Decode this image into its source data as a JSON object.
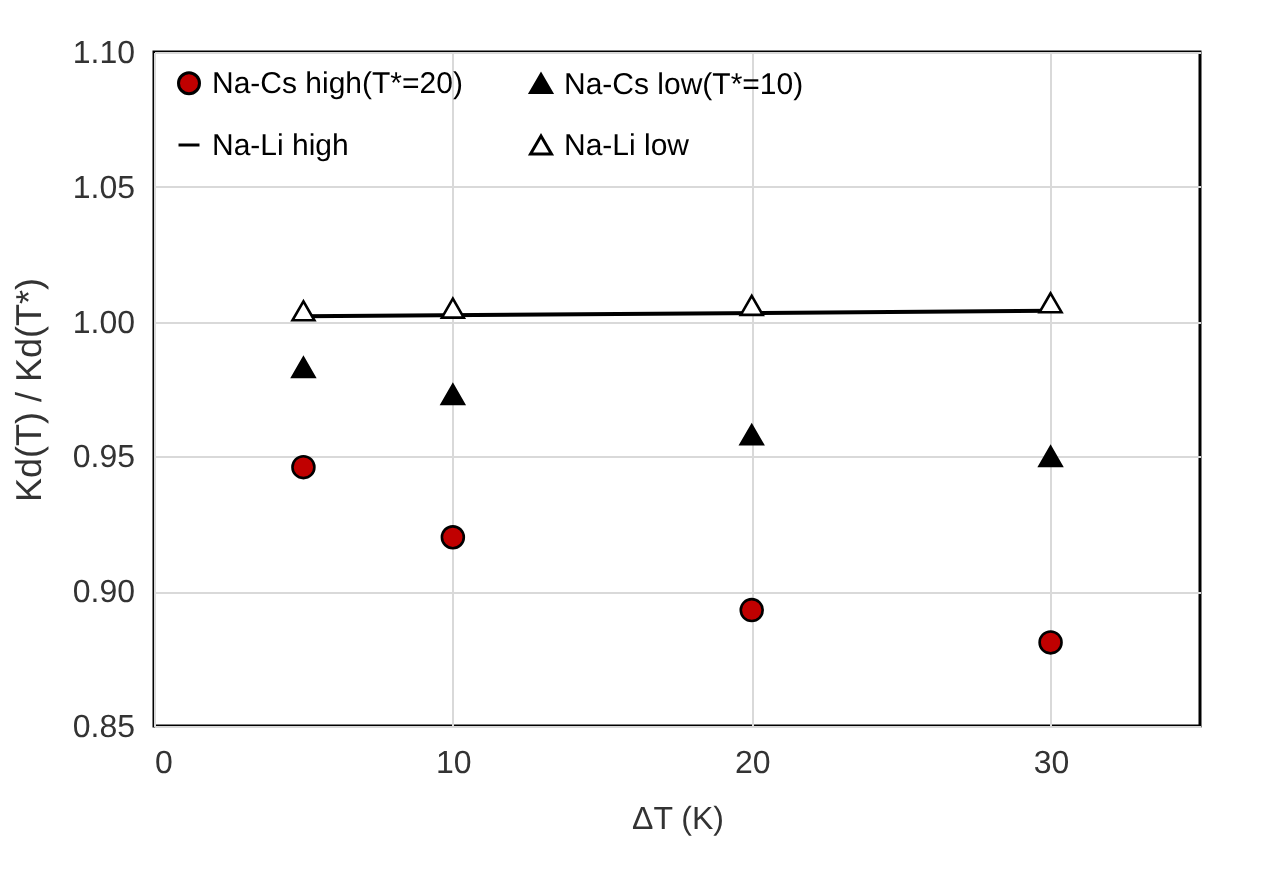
{
  "chart_data": {
    "type": "scatter",
    "xlabel": "ΔT (K)",
    "ylabel": "Kd(T) / Kd(T*)",
    "xlim": [
      0,
      35
    ],
    "xticks": [
      0,
      10,
      20,
      30
    ],
    "ylim": [
      0.85,
      1.1
    ],
    "yticks": [
      {
        "value": 0.85,
        "label": "0.85"
      },
      {
        "value": 0.9,
        "label": "0.90"
      },
      {
        "value": 0.95,
        "label": "0.95"
      },
      {
        "value": 1.0,
        "label": "1.00"
      },
      {
        "value": 1.05,
        "label": "1.05"
      },
      {
        "value": 1.1,
        "label": "1.10"
      }
    ],
    "grid": true,
    "legend": "top",
    "series": [
      {
        "name": "Na-Cs high(T*=20)",
        "marker": "circle",
        "color": "#c00000",
        "x": [
          5,
          10,
          20,
          30
        ],
        "values": [
          0.946,
          0.92,
          0.893,
          0.881
        ]
      },
      {
        "name": "Na-Cs low(T*=10)",
        "marker": "triangle",
        "color": "#000000",
        "x": [
          5,
          10,
          20,
          30
        ],
        "values": [
          0.983,
          0.973,
          0.958,
          0.95
        ]
      },
      {
        "name": "Na-Li high",
        "type": "line",
        "marker": "none",
        "color": "#000000",
        "x": [
          5,
          30
        ],
        "values": [
          1.002,
          1.004
        ]
      },
      {
        "name": "Na-Li low",
        "marker": "triangle",
        "color": "#ffffff",
        "x": [
          5,
          10,
          20,
          30
        ],
        "values": [
          1.004,
          1.005,
          1.006,
          1.007
        ]
      }
    ]
  }
}
